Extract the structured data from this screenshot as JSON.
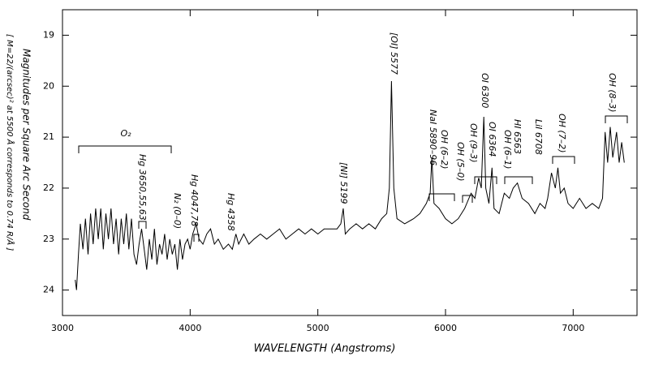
{
  "chart_data": {
    "type": "line",
    "xlabel": "WAVELENGTH (Angstroms)",
    "ylabel": "Magnitudes per Square Arc Second",
    "ylabel_note": "[ M=22/(arcsec)² at 5500 Å corresponds to 0.74 R/Å ]",
    "xlim": [
      3000,
      7500
    ],
    "ylim": [
      24.5,
      18.5
    ],
    "inverted_y": true,
    "xticks": [
      3000,
      4000,
      5000,
      6000,
      7000
    ],
    "yticks": [
      19,
      20,
      21,
      22,
      23,
      24
    ],
    "color": "#000000",
    "x": [
      3100,
      3110,
      3125,
      3140,
      3160,
      3180,
      3200,
      3220,
      3240,
      3260,
      3280,
      3300,
      3320,
      3340,
      3360,
      3380,
      3400,
      3420,
      3440,
      3460,
      3480,
      3500,
      3520,
      3540,
      3560,
      3580,
      3600,
      3620,
      3640,
      3660,
      3680,
      3700,
      3720,
      3740,
      3760,
      3780,
      3800,
      3820,
      3840,
      3860,
      3880,
      3900,
      3920,
      3940,
      3960,
      3980,
      4000,
      4020,
      4047,
      4070,
      4100,
      4130,
      4160,
      4190,
      4220,
      4260,
      4300,
      4330,
      4358,
      4380,
      4420,
      4460,
      4500,
      4550,
      4600,
      4650,
      4700,
      4750,
      4800,
      4850,
      4900,
      4950,
      5000,
      5050,
      5100,
      5150,
      5180,
      5199,
      5215,
      5250,
      5300,
      5350,
      5400,
      5450,
      5500,
      5540,
      5560,
      5577,
      5595,
      5620,
      5680,
      5750,
      5800,
      5850,
      5880,
      5893,
      5910,
      5950,
      6000,
      6050,
      6100,
      6150,
      6200,
      6230,
      6260,
      6280,
      6300,
      6315,
      6340,
      6364,
      6380,
      6420,
      6460,
      6500,
      6530,
      6563,
      6600,
      6650,
      6700,
      6740,
      6780,
      6800,
      6830,
      6860,
      6880,
      6900,
      6930,
      6960,
      7000,
      7050,
      7100,
      7150,
      7200,
      7230,
      7250,
      7270,
      7290,
      7310,
      7340,
      7360,
      7380,
      7400
    ],
    "values": [
      23.8,
      24.0,
      23.3,
      22.7,
      23.2,
      22.6,
      23.3,
      22.5,
      23.1,
      22.4,
      23.0,
      22.4,
      23.2,
      22.5,
      23.0,
      22.4,
      23.1,
      22.6,
      23.3,
      22.6,
      23.1,
      22.5,
      23.2,
      22.6,
      23.3,
      23.5,
      23.1,
      22.8,
      23.2,
      23.6,
      23.0,
      23.4,
      22.8,
      23.5,
      23.1,
      23.3,
      22.9,
      23.4,
      23.0,
      23.3,
      23.1,
      23.6,
      23.0,
      23.4,
      23.1,
      23.0,
      23.2,
      22.9,
      22.7,
      23.0,
      23.1,
      22.9,
      22.8,
      23.1,
      23.0,
      23.2,
      23.1,
      23.2,
      22.9,
      23.1,
      22.9,
      23.1,
      23.0,
      22.9,
      23.0,
      22.9,
      22.8,
      23.0,
      22.9,
      22.8,
      22.9,
      22.8,
      22.9,
      22.8,
      22.8,
      22.8,
      22.7,
      22.4,
      22.9,
      22.8,
      22.7,
      22.8,
      22.7,
      22.8,
      22.6,
      22.5,
      22.0,
      19.9,
      22.0,
      22.6,
      22.7,
      22.6,
      22.5,
      22.3,
      22.1,
      21.4,
      22.3,
      22.4,
      22.6,
      22.7,
      22.6,
      22.4,
      22.1,
      22.2,
      21.8,
      22.0,
      20.6,
      22.0,
      22.3,
      21.6,
      22.4,
      22.5,
      22.1,
      22.2,
      22.0,
      21.9,
      22.2,
      22.3,
      22.5,
      22.3,
      22.4,
      22.2,
      21.7,
      22.0,
      21.6,
      22.1,
      22.0,
      22.3,
      22.4,
      22.2,
      22.4,
      22.3,
      22.4,
      22.2,
      20.9,
      21.5,
      20.8,
      21.4,
      20.9,
      21.5,
      21.1,
      21.5
    ],
    "annotations": [
      "O₂",
      "Hg 3650,55,63",
      "N₂ (0–0)",
      "Hg 4047,78",
      "Hg 4358",
      "[NI] 5199",
      "[OI] 5577",
      "NaI 5890–96",
      "OH (6–2)",
      "OH (5–0)",
      "OH (9–3)",
      "OI 6300",
      "OI 6364",
      "HI 6563",
      "OH (6–1)",
      "LiI 6708",
      "OH (7–2)",
      "OH (8–3)"
    ]
  }
}
